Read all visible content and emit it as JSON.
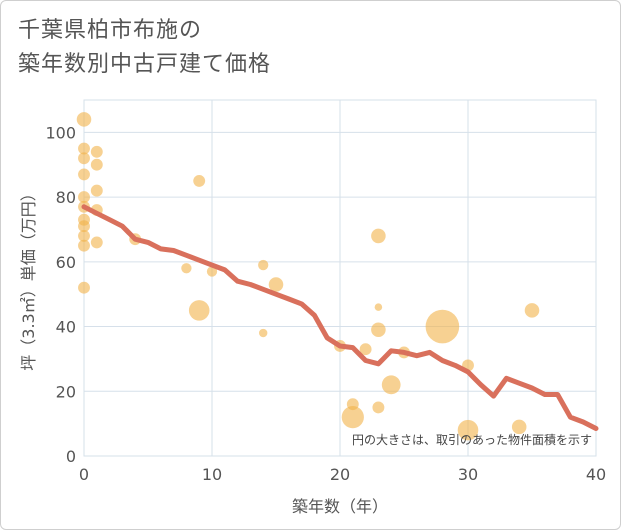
{
  "title_line1": "千葉県柏市布施の",
  "title_line2": "築年数別中古戸建て価格",
  "chart_data": {
    "type": "scatter",
    "title": "千葉県柏市布施の築年数別中古戸建て価格",
    "xlabel": "築年数（年）",
    "ylabel": "坪（3.3㎡）単価（万円）",
    "xlim": [
      0,
      40
    ],
    "ylim": [
      0,
      110
    ],
    "xticks": [
      0,
      10,
      20,
      30,
      40
    ],
    "yticks": [
      0,
      20,
      40,
      60,
      80,
      100
    ],
    "grid": true,
    "annotation": "円の大きさは、取引のあった物件面積を示す",
    "colors": {
      "bubble": "#f2b24a",
      "line": "#d9705c",
      "grid": "#d6e0ea"
    },
    "bubbles": [
      {
        "x": 0,
        "y": 104,
        "size": 3
      },
      {
        "x": 0,
        "y": 95,
        "size": 2
      },
      {
        "x": 0,
        "y": 92,
        "size": 2
      },
      {
        "x": 0,
        "y": 87,
        "size": 2
      },
      {
        "x": 0,
        "y": 80,
        "size": 2
      },
      {
        "x": 0,
        "y": 77,
        "size": 2
      },
      {
        "x": 0,
        "y": 73,
        "size": 2
      },
      {
        "x": 0,
        "y": 71,
        "size": 2
      },
      {
        "x": 0,
        "y": 68,
        "size": 2
      },
      {
        "x": 0,
        "y": 65,
        "size": 2
      },
      {
        "x": 0,
        "y": 52,
        "size": 2
      },
      {
        "x": 1,
        "y": 94,
        "size": 2
      },
      {
        "x": 1,
        "y": 90,
        "size": 2
      },
      {
        "x": 1,
        "y": 82,
        "size": 2
      },
      {
        "x": 1,
        "y": 76,
        "size": 2
      },
      {
        "x": 1,
        "y": 66,
        "size": 2
      },
      {
        "x": 4,
        "y": 67,
        "size": 2
      },
      {
        "x": 9,
        "y": 85,
        "size": 2
      },
      {
        "x": 9,
        "y": 45,
        "size": 6
      },
      {
        "x": 8,
        "y": 58,
        "size": 1.5
      },
      {
        "x": 10,
        "y": 57,
        "size": 1.5
      },
      {
        "x": 14,
        "y": 59,
        "size": 1.5
      },
      {
        "x": 14,
        "y": 38,
        "size": 1
      },
      {
        "x": 15,
        "y": 53,
        "size": 3
      },
      {
        "x": 20,
        "y": 34,
        "size": 2
      },
      {
        "x": 21,
        "y": 16,
        "size": 2
      },
      {
        "x": 21,
        "y": 12,
        "size": 7
      },
      {
        "x": 22,
        "y": 33,
        "size": 2
      },
      {
        "x": 23,
        "y": 68,
        "size": 3
      },
      {
        "x": 23,
        "y": 46,
        "size": 0.8
      },
      {
        "x": 23,
        "y": 39,
        "size": 3
      },
      {
        "x": 23,
        "y": 15,
        "size": 2
      },
      {
        "x": 24,
        "y": 22,
        "size": 5
      },
      {
        "x": 25,
        "y": 32,
        "size": 2
      },
      {
        "x": 28,
        "y": 40,
        "size": 16
      },
      {
        "x": 30,
        "y": 28,
        "size": 2
      },
      {
        "x": 30,
        "y": 8,
        "size": 6
      },
      {
        "x": 34,
        "y": 9,
        "size": 3
      },
      {
        "x": 35,
        "y": 45,
        "size": 3
      }
    ],
    "trend": {
      "x": [
        0,
        1,
        2,
        3,
        4,
        5,
        6,
        7,
        8,
        9,
        10,
        11,
        12,
        13,
        14,
        15,
        16,
        17,
        18,
        19,
        20,
        21,
        22,
        23,
        24,
        25,
        26,
        27,
        28,
        29,
        30,
        31,
        32,
        33,
        34,
        35,
        36,
        37,
        38,
        39,
        40
      ],
      "y": [
        77,
        75,
        73,
        71,
        67,
        66,
        64,
        63.5,
        62,
        60.5,
        59,
        57.5,
        54,
        53,
        51.5,
        50,
        48.5,
        47,
        43.5,
        36.5,
        34,
        33.5,
        29.5,
        28.5,
        32.5,
        32,
        31,
        32,
        29.5,
        28,
        26,
        22,
        18.5,
        24,
        22.5,
        21,
        19,
        19,
        12,
        10.5,
        8.5
      ]
    }
  }
}
